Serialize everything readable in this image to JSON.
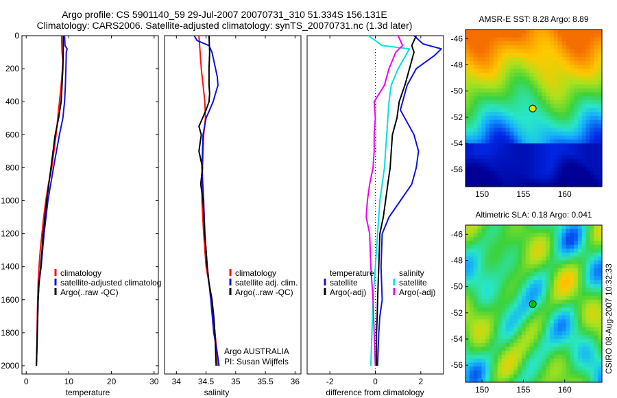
{
  "title": {
    "line1": "Argo profile: CS 5901140_59 29-Jul-2007 20070731_310 51.334S 156.131E",
    "line2": "Climatology: CARS2006. Satellite-adjusted climatology: synTS_20070731.nc (1.3d later)"
  },
  "credit": "CSIRO 08-Aug-2007 10:32:33",
  "colors": {
    "climatology": "#ff1010",
    "satellite": "#1010e0",
    "argo": "#000000",
    "cyan": "#00e0e0",
    "magenta": "#ee00ee"
  },
  "chart_data": [
    {
      "type": "line",
      "xlabel": "temperature",
      "xlim": [
        -1,
        31
      ],
      "ylim": [
        2050,
        0
      ],
      "xticks": [
        0,
        10,
        20,
        30
      ],
      "yticks": [
        0,
        200,
        400,
        600,
        800,
        1000,
        1200,
        1400,
        1600,
        1800,
        2000
      ],
      "legend": [
        "climatology",
        "satellite-adjusted climatolog",
        "Argo(..raw -QC)"
      ],
      "series": [
        {
          "name": "climatology",
          "color": "#ff1010",
          "x": [
            8.3,
            8.4,
            8.6,
            8.5,
            8.2,
            7.8,
            7.0,
            6.0,
            5.2,
            4.6,
            4.1,
            3.7,
            3.3,
            3.0,
            2.8,
            2.6,
            2.5,
            2.4
          ],
          "y": [
            0,
            100,
            150,
            200,
            300,
            400,
            600,
            800,
            900,
            1000,
            1100,
            1200,
            1300,
            1400,
            1500,
            1700,
            1900,
            2000
          ]
        },
        {
          "name": "satellite-adjusted climatolog",
          "color": "#1010e0",
          "x": [
            9.0,
            9.1,
            9.6,
            9.4,
            9.3,
            9.2,
            9.0,
            8.6,
            7.8,
            6.4,
            5.1,
            4.2,
            3.5,
            3.0,
            2.8,
            2.6,
            2.4
          ],
          "y": [
            0,
            60,
            80,
            100,
            200,
            300,
            400,
            500,
            600,
            800,
            1000,
            1200,
            1400,
            1500,
            1600,
            1800,
            2000
          ]
        },
        {
          "name": "Argo(..raw -QC)",
          "color": "#000000",
          "x": [
            8.7,
            8.7,
            8.6,
            8.4,
            8.2,
            7.6,
            6.8,
            5.8,
            4.8,
            4.0,
            3.4,
            3.0,
            2.8,
            2.6,
            2.5,
            2.4
          ],
          "y": [
            0,
            100,
            200,
            300,
            400,
            500,
            600,
            800,
            1000,
            1200,
            1400,
            1500,
            1600,
            1800,
            1900,
            2000
          ]
        }
      ]
    },
    {
      "type": "line",
      "xlabel": "salinity",
      "xlim": [
        33.8,
        36.1
      ],
      "ylim": [
        2050,
        0
      ],
      "xticks": [
        34,
        34.5,
        35,
        35.5,
        36
      ],
      "yticks": [],
      "legend": [
        "climatology",
        "satellite adj. clim.",
        "Argo(..raw -QC)"
      ],
      "annotation": [
        "Argo AUSTRALIA",
        "PI: Susan Wijffels"
      ],
      "series": [
        {
          "name": "climatology",
          "color": "#ff1010",
          "x": [
            34.38,
            34.4,
            34.42,
            34.45,
            34.48,
            34.49,
            34.46,
            34.44,
            34.43,
            34.46,
            34.5,
            34.55,
            34.6,
            34.65,
            34.68,
            34.7
          ],
          "y": [
            0,
            100,
            200,
            300,
            400,
            500,
            600,
            800,
            1000,
            1200,
            1400,
            1500,
            1600,
            1800,
            1900,
            2000
          ]
        },
        {
          "name": "satellite adj. clim.",
          "color": "#1010e0",
          "x": [
            34.3,
            34.35,
            34.55,
            34.6,
            34.66,
            34.69,
            34.7,
            34.62,
            34.5,
            34.45,
            34.43,
            34.46,
            34.48,
            34.52,
            34.58,
            34.63,
            34.68,
            34.72
          ],
          "y": [
            0,
            30,
            60,
            100,
            200,
            250,
            300,
            400,
            500,
            600,
            800,
            1000,
            1200,
            1400,
            1600,
            1800,
            1900,
            2000
          ]
        },
        {
          "name": "Argo(..raw -QC)",
          "color": "#000000",
          "x": [
            34.55,
            34.56,
            34.55,
            34.55,
            34.56,
            34.55,
            34.5,
            34.44,
            34.38,
            34.42,
            34.38,
            34.44,
            34.41,
            34.45,
            34.48,
            34.52,
            34.55,
            34.6,
            34.63,
            34.65,
            34.67
          ],
          "y": [
            0,
            100,
            200,
            300,
            350,
            400,
            450,
            500,
            550,
            600,
            700,
            800,
            900,
            1000,
            1200,
            1400,
            1500,
            1600,
            1700,
            1800,
            2000
          ]
        }
      ]
    },
    {
      "type": "line",
      "xlabel": "difference from climatology",
      "xlim": [
        -3,
        3
      ],
      "ylim": [
        2050,
        0
      ],
      "xticks": [
        -2,
        0,
        2
      ],
      "yticks": [],
      "legend_temperature_title": "temperature",
      "legend_salinity_title": "salinity",
      "legend": [
        "satellite",
        "Argo(-adj)",
        "satellite",
        "Argo(-adj)"
      ],
      "series": [
        {
          "name": "satellite",
          "color": "#1010e0",
          "x": [
            1.7,
            2.1,
            2.9,
            2.6,
            1.8,
            1.4,
            1.2,
            1.1,
            1.3,
            1.7,
            1.9,
            1.8,
            1.6,
            1.1,
            0.6,
            0.3,
            0.25,
            0.3,
            0.2,
            0.15,
            0.1
          ],
          "y": [
            0,
            50,
            80,
            120,
            200,
            300,
            400,
            450,
            500,
            600,
            700,
            800,
            900,
            1000,
            1100,
            1200,
            1400,
            1600,
            1700,
            1800,
            2000
          ]
        },
        {
          "name": "Argo(-adj)",
          "color": "#000000",
          "x": [
            1.8,
            1.6,
            1.7,
            1.5,
            1.3,
            1.05,
            0.95,
            0.75,
            0.7,
            0.65,
            0.55,
            0.45,
            0.35,
            0.2,
            0.15,
            0.1,
            0.08,
            0.05,
            0.05
          ],
          "y": [
            0,
            60,
            100,
            200,
            300,
            400,
            500,
            600,
            700,
            800,
            900,
            1000,
            1100,
            1200,
            1400,
            1600,
            1700,
            1800,
            2000
          ]
        },
        {
          "name": "satellite",
          "color": "#00e0e0",
          "x": [
            -0.3,
            0.3,
            1.5,
            1.0,
            0.7,
            0.6,
            0.5,
            0.45,
            0.4,
            0.3,
            0.2,
            0.1,
            0.0,
            -0.1,
            -0.15,
            -0.2
          ],
          "y": [
            0,
            60,
            80,
            200,
            300,
            400,
            600,
            700,
            800,
            900,
            1000,
            1200,
            1400,
            1600,
            1800,
            2000
          ]
        },
        {
          "name": "Argo(-adj)",
          "color": "#ee00ee",
          "x": [
            1.0,
            1.2,
            0.9,
            0.6,
            0.4,
            -0.05,
            0.0,
            -0.05,
            -0.05,
            -0.1,
            -0.25,
            -0.35,
            -0.4,
            -0.25,
            -0.2,
            -0.1,
            -0.05,
            0.0
          ],
          "y": [
            0,
            60,
            100,
            200,
            300,
            400,
            500,
            600,
            700,
            800,
            900,
            1000,
            1100,
            1200,
            1400,
            1600,
            1800,
            2000
          ]
        }
      ]
    },
    {
      "type": "heatmap",
      "title": "AMSR-E SST: 8.28 Argo: 8.89",
      "xlim": [
        148,
        164.5
      ],
      "ylim": [
        -57.3,
        -45.3
      ],
      "xticks": [
        150,
        155,
        160
      ],
      "yticks": [
        -46,
        -48,
        -50,
        -52,
        -54,
        -56
      ],
      "marker": {
        "lon": 156.131,
        "lat": -51.334,
        "color": "#e0e000"
      }
    },
    {
      "type": "heatmap",
      "title": "Altimetric SLA: 0.18 Argo: 0.041",
      "xlim": [
        148,
        164.5
      ],
      "ylim": [
        -57.3,
        -45.3
      ],
      "xticks": [
        150,
        155,
        160
      ],
      "yticks": [
        -46,
        -48,
        -50,
        -52,
        -54,
        -56
      ],
      "marker": {
        "lon": 156.131,
        "lat": -51.334,
        "color": "#00c000"
      }
    }
  ]
}
